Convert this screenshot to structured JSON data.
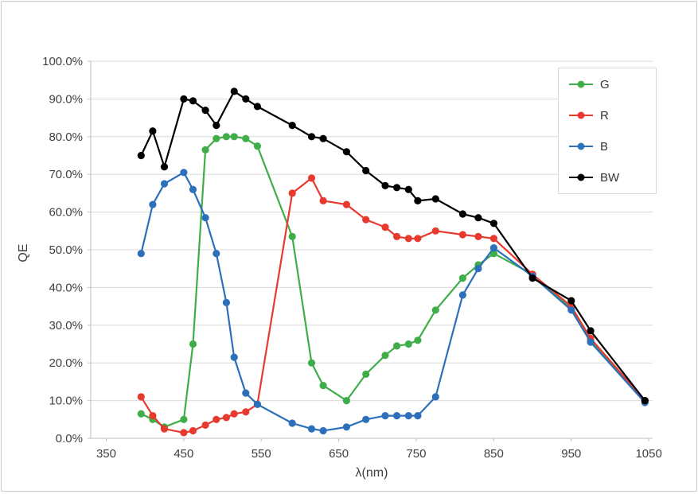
{
  "page": {
    "background": "#ffffff",
    "frame_border_color": "#c8c8c8",
    "gridline_color": "#d9d9d9",
    "axis_line_color": "#bfbfbf",
    "tick_text_color": "#404040"
  },
  "chart_data": {
    "type": "line",
    "title": "",
    "xlabel": "λ(nm)",
    "ylabel": "QE",
    "xlim": [
      350,
      1050
    ],
    "ylim": [
      0,
      100
    ],
    "x_ticks": [
      "350",
      "450",
      "550",
      "650",
      "750",
      "850",
      "950",
      "1050"
    ],
    "y_ticks": [
      "0.0%",
      "10.0%",
      "20.0%",
      "30.0%",
      "40.0%",
      "50.0%",
      "60.0%",
      "70.0%",
      "80.0%",
      "90.0%",
      "100.0%"
    ],
    "grid": "horizontal",
    "marker": "circle",
    "legend_position": "top-right",
    "x": [
      395,
      410,
      425,
      450,
      462,
      478,
      492,
      505,
      515,
      530,
      545,
      590,
      615,
      630,
      660,
      685,
      710,
      725,
      740,
      752,
      775,
      810,
      830,
      850,
      900,
      950,
      975,
      1045
    ],
    "series": [
      {
        "name": "G",
        "color": "#3fae49",
        "values": [
          6.5,
          5,
          3,
          5,
          25,
          76.5,
          79.5,
          80,
          80,
          79.5,
          77.5,
          53.5,
          20,
          14,
          10,
          17,
          22,
          24.5,
          25,
          26,
          34,
          42.5,
          46,
          49,
          43.5,
          34.5,
          26,
          10
        ]
      },
      {
        "name": "R",
        "color": "#e8392f",
        "values": [
          11,
          6,
          2.5,
          1.5,
          2,
          3.5,
          5,
          5.5,
          6.5,
          7,
          9,
          65,
          69,
          63,
          62,
          58,
          56,
          53.5,
          53,
          53,
          55,
          54,
          53.5,
          53,
          43.5,
          35,
          26.5,
          10
        ]
      },
      {
        "name": "B",
        "color": "#2c6fbb",
        "values": [
          49,
          62,
          67.5,
          70.5,
          66,
          58.5,
          49,
          36,
          21.5,
          12,
          9,
          4,
          2.5,
          2,
          3,
          5,
          6,
          6,
          6,
          6,
          11,
          38,
          45,
          50.5,
          43,
          34,
          25.5,
          9.5
        ]
      },
      {
        "name": "BW",
        "color": "#000000",
        "values": [
          75,
          81.5,
          72,
          90,
          89.5,
          87,
          83,
          null,
          92,
          90,
          88,
          83,
          80,
          79.5,
          76,
          71,
          67,
          66.5,
          66,
          63,
          63.5,
          59.5,
          58.5,
          57,
          42.5,
          36.5,
          28.5,
          10
        ]
      }
    ]
  }
}
